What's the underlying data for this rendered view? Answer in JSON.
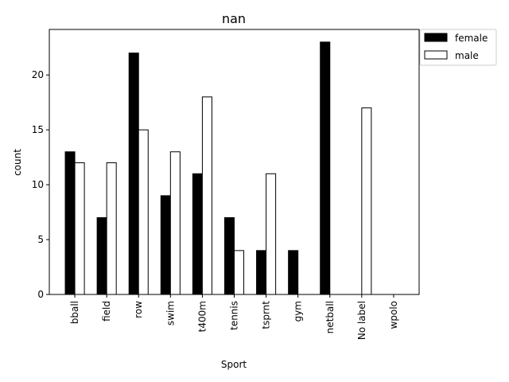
{
  "chart_data": {
    "type": "bar",
    "title": "nan",
    "xlabel": "Sport",
    "ylabel": "count",
    "categories": [
      "bball",
      "field",
      "row",
      "swim",
      "t400m",
      "tennis",
      "tsprnt",
      "gym",
      "netball",
      "No label",
      "wpolo"
    ],
    "series": [
      {
        "name": "female",
        "values": [
          13,
          7,
          22,
          9,
          11,
          7,
          4,
          4,
          23,
          0,
          0
        ],
        "color": "#000000"
      },
      {
        "name": "male",
        "values": [
          12,
          12,
          15,
          13,
          18,
          4,
          11,
          0,
          0,
          17,
          0
        ],
        "color": "#ffffff"
      }
    ],
    "ylim": [
      0,
      24.15
    ],
    "yticks": [
      0,
      5,
      10,
      15,
      20
    ],
    "grid": false,
    "legend_position": "top-right outside"
  }
}
